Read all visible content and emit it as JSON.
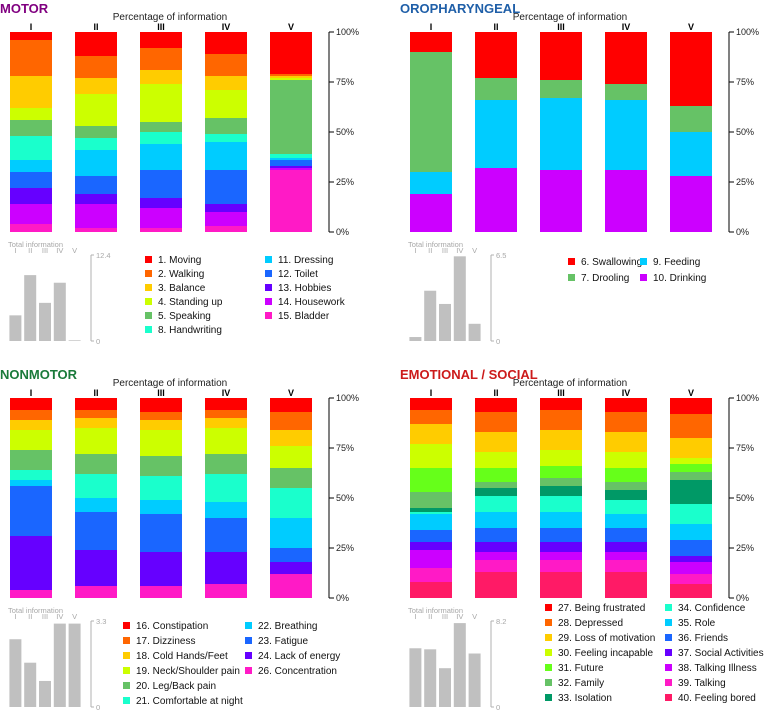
{
  "figure": {
    "subtitle": "Percentage of information",
    "inset_title": "Total information",
    "roman": [
      "I",
      "II",
      "III",
      "IV",
      "V"
    ],
    "y_ticks": [
      "100%",
      "75%",
      "50%",
      "25%",
      "0%"
    ]
  },
  "chart_data": [
    {
      "type": "bar",
      "stacked": true,
      "title": "MOTOR",
      "title_color": "#800080",
      "ylabel": "Percentage of information",
      "ylim": [
        0,
        100
      ],
      "categories": [
        "I",
        "II",
        "III",
        "IV",
        "V"
      ],
      "series": [
        {
          "name": "15. Bladder",
          "color": "#FF1AC6",
          "values": [
            4,
            2,
            2,
            3,
            31
          ]
        },
        {
          "name": "14. Housework",
          "color": "#CC00FF",
          "values": [
            10,
            12,
            10,
            7,
            1
          ]
        },
        {
          "name": "13. Hobbies",
          "color": "#6600FF",
          "values": [
            8,
            5,
            5,
            4,
            1
          ]
        },
        {
          "name": "12. Toilet",
          "color": "#1A66FF",
          "values": [
            8,
            9,
            14,
            17,
            3
          ]
        },
        {
          "name": "11. Dressing",
          "color": "#00CCFF",
          "values": [
            6,
            13,
            13,
            14,
            1
          ]
        },
        {
          "name": "8. Handwriting",
          "color": "#1AFFCC",
          "values": [
            12,
            6,
            6,
            4,
            2
          ]
        },
        {
          "name": "5. Speaking",
          "color": "#66C266",
          "values": [
            8,
            6,
            5,
            8,
            37
          ]
        },
        {
          "name": "4. Standing up",
          "color": "#CCFF00",
          "values": [
            6,
            16,
            19,
            14,
            1
          ]
        },
        {
          "name": "3. Balance",
          "color": "#FFCC00",
          "values": [
            16,
            8,
            7,
            7,
            1
          ]
        },
        {
          "name": "2. Walking",
          "color": "#FF6600",
          "values": [
            18,
            11,
            11,
            11,
            1
          ]
        },
        {
          "name": "1. Moving",
          "color": "#FF0000",
          "values": [
            4,
            12,
            8,
            11,
            21
          ]
        }
      ],
      "legend": [
        {
          "name": "1. Moving",
          "color": "#FF0000"
        },
        {
          "name": "2. Walking",
          "color": "#FF6600"
        },
        {
          "name": "3. Balance",
          "color": "#FFCC00"
        },
        {
          "name": "4. Standing up",
          "color": "#CCFF00"
        },
        {
          "name": "5. Speaking",
          "color": "#66C266"
        },
        {
          "name": "8. Handwriting",
          "color": "#1AFFCC"
        },
        {
          "name": "11. Dressing",
          "color": "#00CCFF"
        },
        {
          "name": "12. Toilet",
          "color": "#1A66FF"
        },
        {
          "name": "13. Hobbies",
          "color": "#6600FF"
        },
        {
          "name": "14. Housework",
          "color": "#CC00FF"
        },
        {
          "name": "15. Bladder",
          "color": "#FF1AC6"
        }
      ],
      "inset": {
        "title": "Total information",
        "max_label": "12.4",
        "zero_label": "0",
        "ymax": 12.4,
        "values": [
          3.7,
          9.5,
          5.5,
          8.4,
          0.1
        ]
      }
    },
    {
      "type": "bar",
      "stacked": true,
      "title": "OROPHARYNGEAL",
      "title_color": "#1F5FA8",
      "ylabel": "Percentage of information",
      "ylim": [
        0,
        100
      ],
      "categories": [
        "I",
        "II",
        "III",
        "IV",
        "V"
      ],
      "series": [
        {
          "name": "10. Drinking",
          "color": "#CC00FF",
          "values": [
            19,
            32,
            31,
            31,
            28
          ]
        },
        {
          "name": "9. Feeding",
          "color": "#00CCFF",
          "values": [
            11,
            34,
            36,
            35,
            22
          ]
        },
        {
          "name": "7. Drooling",
          "color": "#66C266",
          "values": [
            60,
            11,
            9,
            8,
            13
          ]
        },
        {
          "name": "6. Swallowing",
          "color": "#FF0000",
          "values": [
            10,
            23,
            24,
            26,
            37
          ]
        }
      ],
      "legend": [
        {
          "name": "6. Swallowing",
          "color": "#FF0000"
        },
        {
          "name": "7. Drooling",
          "color": "#66C266"
        },
        {
          "name": "9. Feeding",
          "color": "#00CCFF"
        },
        {
          "name": "10. Drinking",
          "color": "#CC00FF"
        }
      ],
      "inset": {
        "title": "Total information",
        "max_label": "6.5",
        "zero_label": "0",
        "ymax": 6.5,
        "values": [
          0.3,
          3.8,
          2.8,
          6.4,
          1.3
        ]
      }
    },
    {
      "type": "bar",
      "stacked": true,
      "title": "NONMOTOR",
      "title_color": "#1A7A3A",
      "ylabel": "Percentage of information",
      "ylim": [
        0,
        100
      ],
      "categories": [
        "I",
        "II",
        "III",
        "IV",
        "V"
      ],
      "series": [
        {
          "name": "26. Concentration",
          "color": "#FF1AC6",
          "values": [
            4,
            6,
            6,
            7,
            12
          ]
        },
        {
          "name": "24. Lack of energy",
          "color": "#6600FF",
          "values": [
            27,
            18,
            17,
            16,
            6
          ]
        },
        {
          "name": "23. Fatigue",
          "color": "#1A66FF",
          "values": [
            25,
            19,
            19,
            17,
            7
          ]
        },
        {
          "name": "22. Breathing",
          "color": "#00CCFF",
          "values": [
            3,
            7,
            7,
            8,
            15
          ]
        },
        {
          "name": "21. Comfortable at night",
          "color": "#1AFFCC",
          "values": [
            5,
            12,
            12,
            14,
            15
          ]
        },
        {
          "name": "20. Leg/Back pain",
          "color": "#66C266",
          "values": [
            10,
            10,
            10,
            10,
            10
          ]
        },
        {
          "name": "19. Neck/Shoulder pain",
          "color": "#CCFF00",
          "values": [
            10,
            13,
            13,
            13,
            11
          ]
        },
        {
          "name": "18. Cold Hands/Feet",
          "color": "#FFCC00",
          "values": [
            5,
            5,
            5,
            5,
            8
          ]
        },
        {
          "name": "17. Dizziness",
          "color": "#FF6600",
          "values": [
            5,
            4,
            4,
            4,
            9
          ]
        },
        {
          "name": "16. Constipation",
          "color": "#FF0000",
          "values": [
            6,
            6,
            7,
            6,
            7
          ]
        }
      ],
      "legend": [
        {
          "name": "16. Constipation",
          "color": "#FF0000"
        },
        {
          "name": "17. Dizziness",
          "color": "#FF6600"
        },
        {
          "name": "18. Cold Hands/Feet",
          "color": "#FFCC00"
        },
        {
          "name": "19. Neck/Shoulder pain",
          "color": "#CCFF00"
        },
        {
          "name": "20. Leg/Back pain",
          "color": "#66C266"
        },
        {
          "name": "21. Comfortable at night",
          "color": "#1AFFCC"
        },
        {
          "name": "22. Breathing",
          "color": "#00CCFF"
        },
        {
          "name": "23. Fatigue",
          "color": "#1A66FF"
        },
        {
          "name": "24. Lack of energy",
          "color": "#6600FF"
        },
        {
          "name": "26. Concentration",
          "color": "#FF1AC6"
        }
      ],
      "inset": {
        "title": "Total information",
        "max_label": "3.3",
        "zero_label": "0",
        "ymax": 3.3,
        "values": [
          2.6,
          1.7,
          1.0,
          3.2,
          3.2
        ]
      }
    },
    {
      "type": "bar",
      "stacked": true,
      "title": "EMOTIONAL / SOCIAL",
      "title_color": "#CC1A1A",
      "ylabel": "Percentage of information",
      "ylim": [
        0,
        100
      ],
      "categories": [
        "I",
        "II",
        "III",
        "IV",
        "V"
      ],
      "series": [
        {
          "name": "40. Feeling bored",
          "color": "#FF1A66",
          "values": [
            8,
            13,
            13,
            13,
            7
          ]
        },
        {
          "name": "39. Talking",
          "color": "#FF1AC6",
          "values": [
            7,
            6,
            6,
            6,
            5
          ]
        },
        {
          "name": "38. Talking Illness",
          "color": "#CC00FF",
          "values": [
            9,
            4,
            4,
            4,
            6
          ]
        },
        {
          "name": "37. Social Activities",
          "color": "#6600FF",
          "values": [
            4,
            5,
            5,
            5,
            3
          ]
        },
        {
          "name": "36. Friends",
          "color": "#1A66FF",
          "values": [
            6,
            7,
            7,
            7,
            8
          ]
        },
        {
          "name": "35. Role",
          "color": "#00CCFF",
          "values": [
            8,
            8,
            8,
            7,
            8
          ]
        },
        {
          "name": "34. Confidence",
          "color": "#1AFFCC",
          "values": [
            1,
            8,
            8,
            7,
            10
          ]
        },
        {
          "name": "33. Isolation",
          "color": "#009966",
          "values": [
            2,
            4,
            5,
            5,
            12
          ]
        },
        {
          "name": "32. Family",
          "color": "#66C266",
          "values": [
            8,
            3,
            4,
            4,
            4
          ]
        },
        {
          "name": "31. Future",
          "color": "#66FF1A",
          "values": [
            12,
            7,
            6,
            7,
            4
          ]
        },
        {
          "name": "30. Feeling incapable",
          "color": "#CCFF00",
          "values": [
            12,
            8,
            8,
            8,
            3
          ]
        },
        {
          "name": "29. Loss of motivation",
          "color": "#FFCC00",
          "values": [
            10,
            10,
            10,
            10,
            10
          ]
        },
        {
          "name": "28. Depressed",
          "color": "#FF6600",
          "values": [
            7,
            10,
            10,
            10,
            12
          ]
        },
        {
          "name": "27. Being frustrated",
          "color": "#FF0000",
          "values": [
            6,
            7,
            6,
            7,
            8
          ]
        }
      ],
      "legend": [
        {
          "name": "27. Being frustrated",
          "color": "#FF0000"
        },
        {
          "name": "28. Depressed",
          "color": "#FF6600"
        },
        {
          "name": "29. Loss of motivation",
          "color": "#FFCC00"
        },
        {
          "name": "30. Feeling incapable",
          "color": "#CCFF00"
        },
        {
          "name": "31. Future",
          "color": "#66FF1A"
        },
        {
          "name": "32. Family",
          "color": "#66C266"
        },
        {
          "name": "33. Isolation",
          "color": "#009966"
        },
        {
          "name": "34. Confidence",
          "color": "#1AFFCC"
        },
        {
          "name": "35. Role",
          "color": "#00CCFF"
        },
        {
          "name": "36. Friends",
          "color": "#1A66FF"
        },
        {
          "name": "37. Social Activities",
          "color": "#6600FF"
        },
        {
          "name": "38. Talking Illness",
          "color": "#CC00FF"
        },
        {
          "name": "39. Talking",
          "color": "#FF1AC6"
        },
        {
          "name": "40. Feeling bored",
          "color": "#FF1A66"
        }
      ],
      "inset": {
        "title": "Total information",
        "max_label": "8.2",
        "zero_label": "0",
        "ymax": 8.2,
        "values": [
          5.6,
          5.5,
          3.7,
          8.0,
          5.1
        ]
      }
    }
  ]
}
